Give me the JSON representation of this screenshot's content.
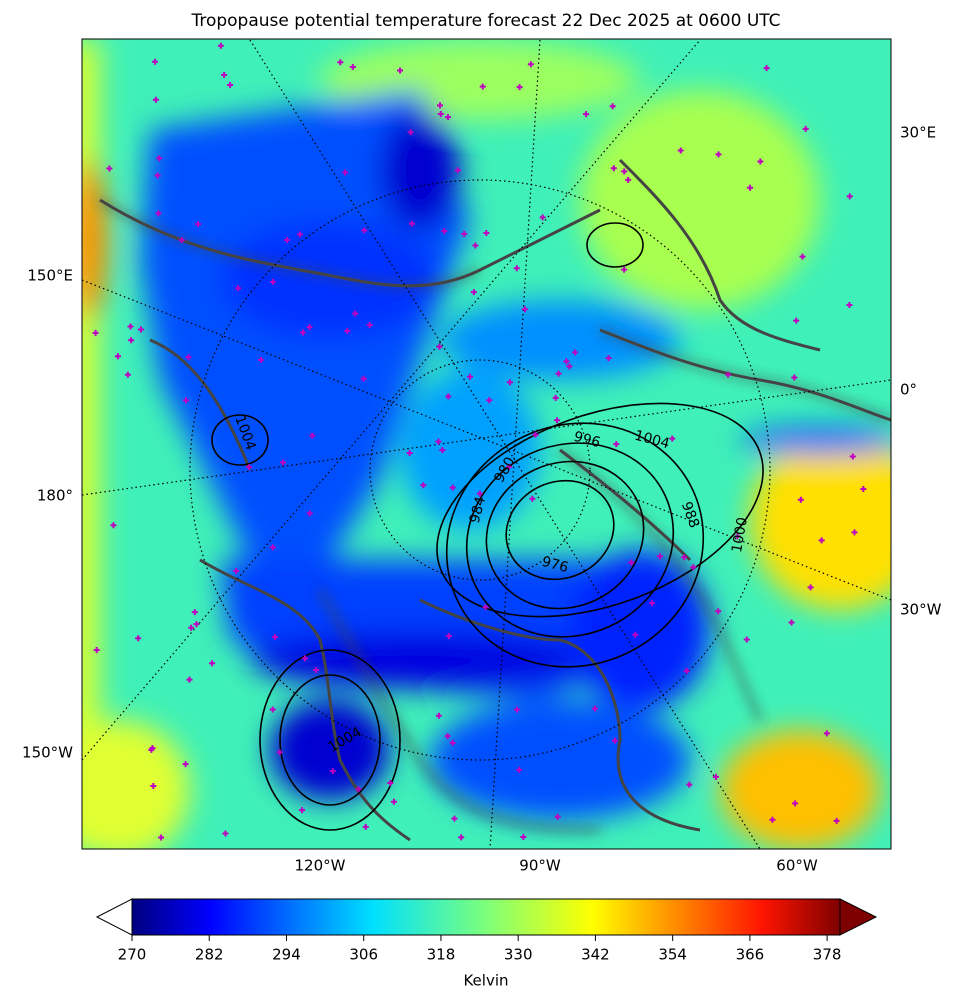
{
  "title": "Tropopause potential temperature forecast 22 Dec 2025 at 0600 UTC",
  "map": {
    "left_labels": [
      "150°E",
      "180°",
      "150°W"
    ],
    "right_labels": [
      "30°E",
      "0°",
      "30°W"
    ],
    "bottom_labels": [
      "120°W",
      "90°W",
      "60°W"
    ],
    "contour_labels": [
      "1004",
      "996",
      "1004",
      "980",
      "984",
      "988",
      "976",
      "1000",
      "1004"
    ]
  },
  "colorbar": {
    "label": "Kelvin",
    "lim": [
      270,
      380
    ],
    "ticks": [
      270,
      282,
      294,
      306,
      318,
      330,
      342,
      354,
      366,
      378
    ]
  }
}
